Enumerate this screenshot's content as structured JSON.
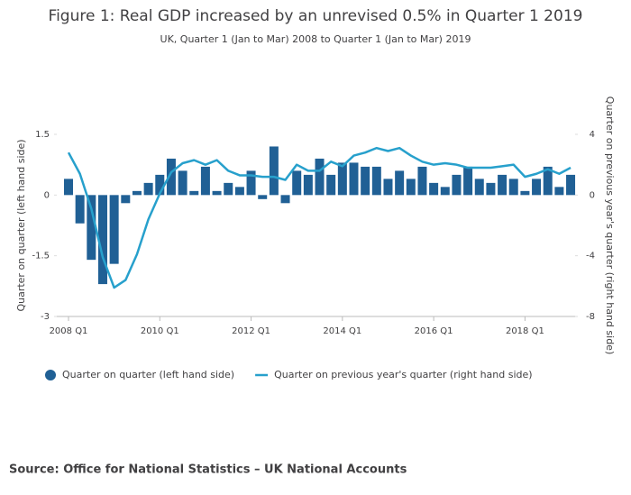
{
  "chart_data": {
    "type": "bar-line",
    "title": "Figure 1: Real GDP increased by an unrevised 0.5% in Quarter 1 2019",
    "subtitle": "UK, Quarter 1 (Jan to Mar) 2008 to Quarter 1 (Jan to Mar) 2019",
    "y_label": "Quarter on quarter (left hand side)",
    "y2_label": "Quarter on previous year's quarter (right hand side)",
    "source": "Source: Office for National Statistics – UK National Accounts",
    "categories": [
      "2008 Q1",
      null,
      null,
      null,
      null,
      null,
      null,
      null,
      "2010 Q1",
      null,
      null,
      null,
      null,
      null,
      null,
      null,
      "2012 Q1",
      null,
      null,
      null,
      null,
      null,
      null,
      null,
      "2014 Q1",
      null,
      null,
      null,
      null,
      null,
      null,
      null,
      "2016 Q1",
      null,
      null,
      null,
      null,
      null,
      null,
      null,
      "2018 Q1",
      null,
      null,
      null,
      null
    ],
    "series": [
      {
        "name": "Quarter on quarter (left hand side)",
        "kind": "bar",
        "color": "#206095",
        "values": [
          0.4,
          -0.7,
          -1.6,
          -2.2,
          -1.7,
          -0.2,
          0.1,
          0.3,
          0.5,
          0.9,
          0.6,
          0.1,
          0.7,
          0.1,
          0.3,
          0.2,
          0.6,
          -0.1,
          1.2,
          -0.2,
          0.6,
          0.5,
          0.9,
          0.5,
          0.8,
          0.8,
          0.7,
          0.7,
          0.4,
          0.6,
          0.4,
          0.7,
          0.3,
          0.2,
          0.5,
          0.7,
          0.4,
          0.3,
          0.5,
          0.4,
          0.1,
          0.4,
          0.7,
          0.2,
          0.5
        ]
      },
      {
        "name": "Quarter on previous year's quarter (right hand side)",
        "kind": "line",
        "axis": "y2",
        "color": "#27a0cc",
        "values": [
          2.8,
          1.4,
          -0.9,
          -4.1,
          -6.1,
          -5.6,
          -3.9,
          -1.6,
          0.1,
          1.5,
          2.1,
          2.3,
          2.0,
          2.3,
          1.6,
          1.3,
          1.3,
          1.2,
          1.2,
          1.0,
          2.0,
          1.6,
          1.6,
          2.2,
          1.9,
          2.6,
          2.8,
          3.1,
          2.9,
          3.1,
          2.6,
          2.2,
          2.0,
          2.1,
          2.0,
          1.8,
          1.8,
          1.8,
          1.9,
          2.0,
          1.2,
          1.4,
          1.7,
          1.4,
          1.8
        ]
      }
    ],
    "ylim": [
      -3,
      1.5
    ],
    "yticks": [
      1.5,
      0,
      -1.5,
      -3
    ],
    "y2lim": [
      -8,
      4
    ],
    "y2ticks": [
      4,
      0,
      -4,
      -8
    ]
  }
}
